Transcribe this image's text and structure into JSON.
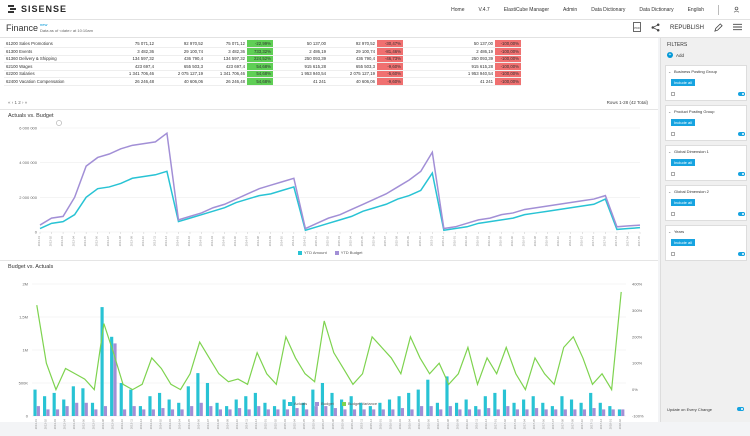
{
  "header": {
    "brand": "SISENSE",
    "nav": [
      "Home",
      "V.4.7",
      "ElastiCube Manager",
      "Admin",
      "Data Dictionary",
      "Data Dictionary",
      "English"
    ]
  },
  "dashboard": {
    "title": "Finance",
    "tag": "new",
    "subtitle": "Data as of <date> at 10:10am",
    "republish": "REPUBLISH"
  },
  "table": {
    "rows": [
      [
        "61200 Sales Promotions",
        "75 071,12",
        "",
        "92 970,52",
        "75 071,12",
        "-22,99%",
        "",
        "50 137,00",
        "",
        "92 970,52",
        "-30,47%",
        "",
        "",
        "50 137,00",
        "-100,00%"
      ],
      [
        "61300 Events",
        "3 482,36",
        "",
        "29 100,74",
        "3 482,36",
        "733,32%",
        "",
        "2 486,19",
        "",
        "29 100,74",
        "-81,46%",
        "",
        "",
        "2 486,19",
        "-100,00%"
      ],
      [
        "61360 Delivery & Shipping",
        "134 597,32",
        "",
        "436 790,4",
        "134 597,32",
        "224,52%",
        "",
        "250 093,39",
        "",
        "436 790,4",
        "-46,73%",
        "",
        "",
        "250 093,39",
        "-100,00%"
      ],
      [
        "62100 Wages",
        "423 697,4",
        "",
        "655 503,3",
        "423 697,4",
        "54,68%",
        "",
        "915 615,28",
        "",
        "655 503,3",
        "-9,60%",
        "",
        "",
        "915 615,28",
        "-100,00%"
      ],
      [
        "62200 Salaries",
        "1 341 706,46",
        "",
        "2 075 127,19",
        "1 341 706,46",
        "54,68%",
        "",
        "1 953 940,54",
        "",
        "2 075 127,19",
        "-5,60%",
        "",
        "",
        "1 953 940,54",
        "-100,00%"
      ],
      [
        "62400 Vacation Compensation",
        "26 246,48",
        "",
        "40 606,06",
        "26 246,48",
        "54,68%",
        "",
        "41 241",
        "",
        "40 606,06",
        "-9,60%",
        "",
        "",
        "41 241",
        "-100,00%"
      ]
    ],
    "pager": "« ‹ 1 2 › »",
    "rows_total": "Rows 1-28 (42 Total)"
  },
  "widgets": {
    "actuals_title": "Actuals vs. Budget",
    "budget_title": "Budget vs. Actuals"
  },
  "colors": {
    "accent": "#16a3e0",
    "actual": "#28c3d4",
    "budget": "#a28fd6",
    "variance": "#7ed34f",
    "pos_cell": "#5fcf55",
    "neg_cell": "#f07070"
  },
  "chart_data": [
    {
      "type": "line",
      "title": "Actuals vs. Budget",
      "ylabel": "",
      "y_ticks": [
        "0",
        "2 000 000",
        "4 000 000",
        "6 000 000"
      ],
      "ylim": [
        0,
        6000000
      ],
      "series": [
        {
          "name": "YTD Amount",
          "values": [
            200000,
            500000,
            600000,
            1000000,
            2000000,
            2500000,
            2600000,
            2800000,
            3100000,
            3200000,
            3300000,
            3500000,
            600000,
            800000,
            1000000,
            1200000,
            1400000,
            1700000,
            1900000,
            2100000,
            2200000,
            2400000,
            2600000,
            100000,
            300000,
            500000,
            700000,
            900000,
            1200000,
            1400000,
            1600000,
            1900000,
            2100000,
            2400000,
            3400000,
            100000,
            200000,
            300000,
            500000,
            600000,
            700000,
            800000,
            1000000,
            1100000,
            1200000,
            1300000,
            1400000,
            1500000,
            1600000,
            1900000,
            150000,
            200000,
            250000
          ]
        },
        {
          "name": "YTD Budget",
          "values": [
            400000,
            800000,
            900000,
            2000000,
            3800000,
            4300000,
            4500000,
            4800000,
            5000000,
            5100000,
            5200000,
            5700000,
            700000,
            900000,
            1100000,
            1400000,
            1600000,
            1900000,
            2200000,
            2500000,
            2700000,
            2900000,
            3100000,
            200000,
            500000,
            800000,
            1000000,
            1300000,
            1600000,
            1900000,
            2200000,
            2600000,
            3000000,
            3500000,
            4600000,
            200000,
            300000,
            500000,
            700000,
            800000,
            1000000,
            1100000,
            1300000,
            1400000,
            1500000,
            1600000,
            1700000,
            1800000,
            1900000,
            2100000,
            300000,
            350000,
            400000
          ]
        }
      ]
    },
    {
      "type": "bar",
      "title": "Budget vs. Actuals",
      "y_ticks": [
        "0",
        "500K",
        "1M",
        "1,5M",
        "2M"
      ],
      "y2_ticks": [
        "-100%",
        "0%",
        "100%",
        "200%",
        "300%",
        "400%"
      ],
      "ylim": [
        0,
        2000000
      ],
      "y2lim": [
        -100,
        400
      ],
      "series": [
        {
          "name": "Actuals",
          "values": [
            400000,
            300000,
            350000,
            250000,
            450000,
            420000,
            200000,
            1650000,
            1200000,
            500000,
            400000,
            150000,
            300000,
            350000,
            250000,
            200000,
            450000,
            650000,
            500000,
            200000,
            150000,
            250000,
            300000,
            350000,
            200000,
            150000,
            250000,
            300000,
            200000,
            400000,
            500000,
            350000,
            250000,
            300000,
            200000,
            150000,
            200000,
            250000,
            300000,
            350000,
            400000,
            550000,
            200000,
            600000,
            200000,
            250000,
            150000,
            300000,
            350000,
            400000,
            200000,
            250000,
            300000,
            200000,
            150000,
            300000,
            250000,
            200000,
            350000,
            200000,
            150000,
            100000
          ]
        },
        {
          "name": "Budget",
          "values": [
            150000,
            100000,
            100000,
            150000,
            200000,
            200000,
            100000,
            150000,
            1100000,
            100000,
            150000,
            100000,
            100000,
            120000,
            100000,
            100000,
            150000,
            200000,
            150000,
            100000,
            100000,
            120000,
            100000,
            150000,
            100000,
            100000,
            100000,
            120000,
            100000,
            150000,
            150000,
            120000,
            100000,
            100000,
            100000,
            100000,
            100000,
            100000,
            120000,
            100000,
            150000,
            150000,
            100000,
            150000,
            100000,
            100000,
            100000,
            120000,
            100000,
            150000,
            100000,
            100000,
            120000,
            100000,
            100000,
            100000,
            100000,
            100000,
            120000,
            100000,
            100000,
            100000
          ]
        },
        {
          "name": "Budget Variance",
          "values": [
            320,
            100,
            0,
            80,
            60,
            40,
            0,
            250,
            140,
            20,
            0,
            20,
            120,
            80,
            20,
            0,
            60,
            180,
            120,
            60,
            30,
            40,
            20,
            140,
            60,
            20,
            200,
            120,
            60,
            30,
            260,
            140,
            80,
            20,
            60,
            200,
            160,
            120,
            60,
            200,
            120,
            60,
            100,
            20,
            60,
            160,
            20,
            120,
            60,
            160,
            60,
            0,
            120,
            60,
            20,
            160,
            200,
            120,
            20,
            60,
            0,
            370
          ]
        }
      ]
    }
  ],
  "filters": {
    "title": "FILTERS",
    "add": "Add",
    "items": [
      {
        "name": "Business Posting Group",
        "btn": "Include all"
      },
      {
        "name": "Product Posting Group",
        "btn": "Include all"
      },
      {
        "name": "Global Dimension 1",
        "btn": "Include all"
      },
      {
        "name": "Global Dimension 2",
        "btn": "Include all"
      },
      {
        "name": "Years",
        "btn": "Include all"
      }
    ],
    "update": "Update on Every Change"
  }
}
